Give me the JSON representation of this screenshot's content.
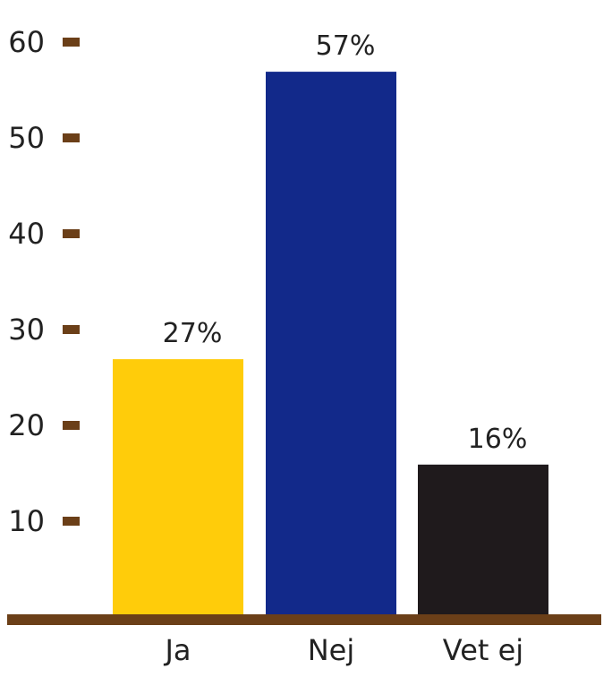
{
  "chart_data": {
    "type": "bar",
    "categories": [
      "Ja",
      "Nej",
      "Vet ej"
    ],
    "values": [
      27,
      57,
      16
    ],
    "value_labels": [
      "27%",
      "57%",
      "16%"
    ],
    "bar_colors": [
      "#ffcc0a",
      "#12298a",
      "#1f1a1c"
    ],
    "axis_color": "#6b3f18",
    "yticks": [
      10,
      20,
      30,
      40,
      50,
      60
    ],
    "ylim": [
      0,
      60
    ],
    "title": "",
    "xlabel": "",
    "ylabel": "",
    "grid": false,
    "legend": "none"
  }
}
